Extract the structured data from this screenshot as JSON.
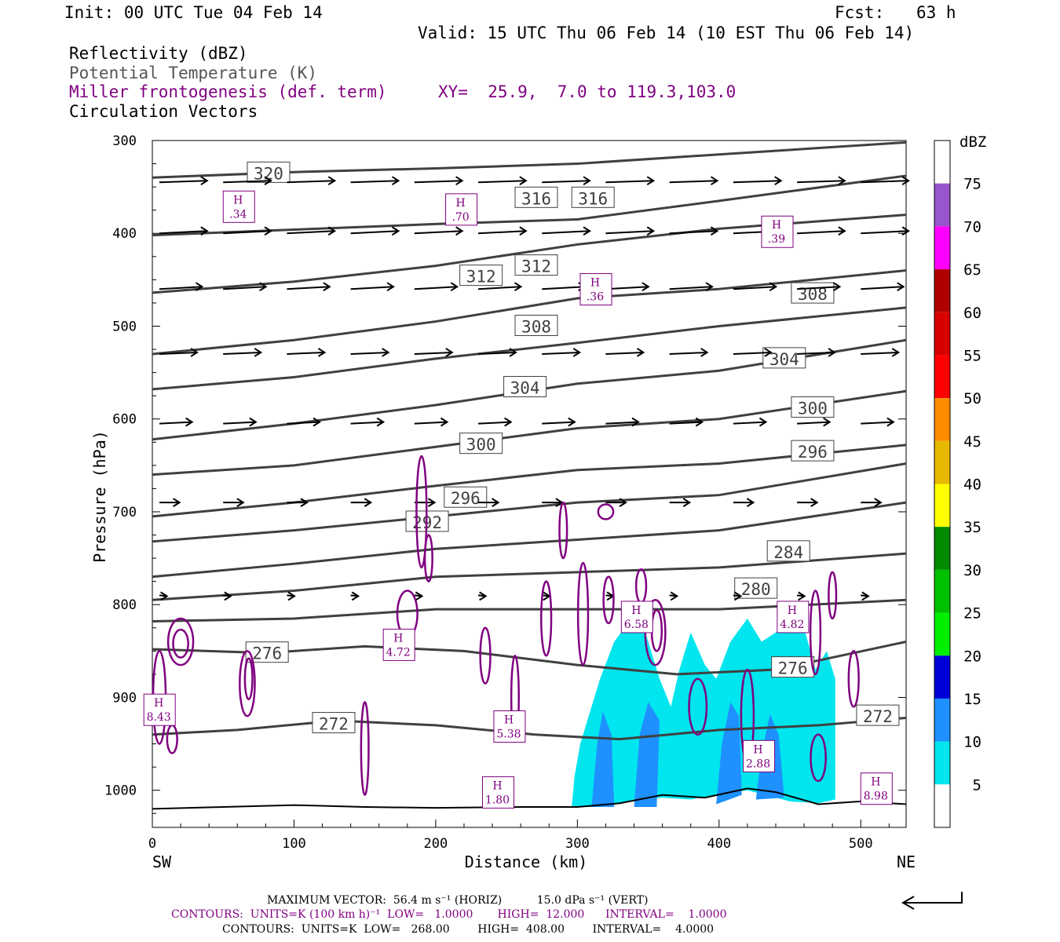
{
  "header": {
    "init": "Init: 00 UTC Tue 04 Feb 14",
    "fcst_label": "Fcst:",
    "fcst_value": "63 h",
    "valid": "Valid: 15 UTC Thu 06 Feb 14 (10 EST Thu 06 Feb 14)"
  },
  "fields": {
    "reflectivity": "Reflectivity (dBZ)",
    "theta": "Potential Temperature (K)",
    "frontogenesis": "Miller frontogenesis (def. term)",
    "xy": "XY=  25.9,  7.0 to 119.3,103.0",
    "vectors": "Circulation Vectors"
  },
  "colors": {
    "theta": "#404040",
    "frontogenesis": "#800080",
    "cyan": "#00e5ee",
    "blue_light": "#1e90ff"
  },
  "chart_data": {
    "type": "cross-section",
    "xlabel": "Distance (km)",
    "ylabel": "Pressure (hPa)",
    "xlim": [
      0,
      532
    ],
    "ylim": [
      300,
      1040
    ],
    "x_ticks": [
      "0",
      "100",
      "200",
      "300",
      "400",
      "500"
    ],
    "y_ticks": [
      "300",
      "400",
      "500",
      "600",
      "700",
      "800",
      "900",
      "1000"
    ],
    "left_end": "SW",
    "right_end": "NE",
    "colorbar": {
      "title": "dBZ",
      "levels": [
        "5",
        "10",
        "15",
        "20",
        "25",
        "30",
        "35",
        "40",
        "45",
        "50",
        "55",
        "60",
        "65",
        "70",
        "75"
      ],
      "colors": [
        "#ffffff",
        "#00e5ee",
        "#1e90ff",
        "#0000d9",
        "#00ee00",
        "#00c000",
        "#008b00",
        "#ffff00",
        "#e6b800",
        "#ff8c00",
        "#ff0000",
        "#d90000",
        "#b00000",
        "#ff00ff",
        "#9955cc",
        "#ffffff"
      ]
    },
    "theta_labels": [
      {
        "text": "320",
        "x": 82,
        "p": 335
      },
      {
        "text": "316",
        "x": 271,
        "p": 362
      },
      {
        "text": "316",
        "x": 311,
        "p": 362
      },
      {
        "text": "312",
        "x": 232,
        "p": 446
      },
      {
        "text": "312",
        "x": 271,
        "p": 435
      },
      {
        "text": "308",
        "x": 271,
        "p": 500
      },
      {
        "text": "308",
        "x": 466,
        "p": 465
      },
      {
        "text": "304",
        "x": 263,
        "p": 566
      },
      {
        "text": "304",
        "x": 446,
        "p": 535
      },
      {
        "text": "300",
        "x": 232,
        "p": 627
      },
      {
        "text": "300",
        "x": 466,
        "p": 588
      },
      {
        "text": "296",
        "x": 221,
        "p": 685
      },
      {
        "text": "296",
        "x": 466,
        "p": 635
      },
      {
        "text": "292",
        "x": 194,
        "p": 711
      },
      {
        "text": "284",
        "x": 449,
        "p": 743
      },
      {
        "text": "280",
        "x": 426,
        "p": 783
      },
      {
        "text": "276",
        "x": 81,
        "p": 852
      },
      {
        "text": "276",
        "x": 452,
        "p": 868
      },
      {
        "text": "272",
        "x": 128,
        "p": 928
      },
      {
        "text": "272",
        "x": 512,
        "p": 920
      }
    ],
    "frontogenesis_maxima": [
      {
        "label": "H",
        "value": ".34",
        "x": 60,
        "p": 373
      },
      {
        "label": "H",
        "value": ".70",
        "x": 217,
        "p": 376
      },
      {
        "label": "H",
        "value": ".39",
        "x": 440,
        "p": 400
      },
      {
        "label": "H",
        "value": ".36",
        "x": 312,
        "p": 462
      },
      {
        "label": "H",
        "value": "6.58",
        "x": 341,
        "p": 815
      },
      {
        "label": "H",
        "value": "4.82",
        "x": 451,
        "p": 815
      },
      {
        "label": "H",
        "value": "4.72",
        "x": 173,
        "p": 845
      },
      {
        "label": "H",
        "value": "5.38",
        "x": 251,
        "p": 933
      },
      {
        "label": "H",
        "value": "8.43",
        "x": 4,
        "p": 915
      },
      {
        "label": "H",
        "value": "2.88",
        "x": 427,
        "p": 965
      },
      {
        "label": "H",
        "value": "1.80",
        "x": 243,
        "p": 1004
      },
      {
        "label": "H",
        "value": "8.98",
        "x": 510,
        "p": 1000
      }
    ]
  },
  "footer": {
    "max_vector": "MAXIMUM VECTOR:  56.4 m s⁻¹ (HORIZ)          15.0 dPa s⁻¹ (VERT)",
    "contours_fronto": "CONTOURS:  UNITS=K (100 km h)⁻¹  LOW=   1.0000       HIGH=  12.000      INTERVAL=    1.0000",
    "contours_theta": "CONTOURS:  UNITS=K  LOW=   268.00        HIGH=  408.00        INTERVAL=    4.0000"
  }
}
